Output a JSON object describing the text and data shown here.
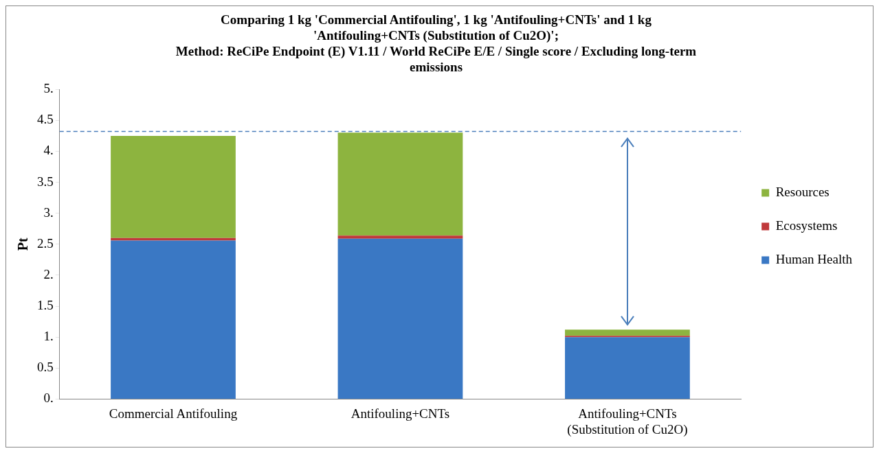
{
  "chart_data": {
    "type": "bar",
    "stacked": true,
    "title": "Comparing 1 kg 'Commercial Antifouling', 1 kg 'Antifouling+CNTs' and 1 kg\n'Antifouling+CNTs (Substitution of Cu2O)';\nMethod: ReCiPe Endpoint (E) V1.11 / World ReCiPe E/E / Single score / Excluding long-term\nemissions",
    "ylabel": "Pt",
    "categories": [
      "Commercial Antifouling",
      "Antifouling+CNTs",
      "Antifouling+CNTs (Substitution of Cu2O)"
    ],
    "series": [
      {
        "name": "Human Health",
        "color": "#3a78c4",
        "values": [
          2.56,
          2.59,
          1.0
        ]
      },
      {
        "name": "Ecosystems",
        "color": "#c0393b",
        "values": [
          0.04,
          0.05,
          0.02
        ]
      },
      {
        "name": "Resources",
        "color": "#8db43f",
        "values": [
          1.65,
          1.66,
          0.1
        ]
      }
    ],
    "ylim": [
      0,
      5
    ],
    "yticks": [
      {
        "value": 0,
        "label": "0."
      },
      {
        "value": 0.5,
        "label": "0.5"
      },
      {
        "value": 1,
        "label": "1."
      },
      {
        "value": 1.5,
        "label": "1.5"
      },
      {
        "value": 2,
        "label": "2."
      },
      {
        "value": 2.5,
        "label": "2.5"
      },
      {
        "value": 3,
        "label": "3."
      },
      {
        "value": 3.5,
        "label": "3.5"
      },
      {
        "value": 4,
        "label": "4."
      },
      {
        "value": 4.5,
        "label": "4.5"
      },
      {
        "value": 5,
        "label": "5."
      }
    ],
    "ref_lines": [
      {
        "axis": "y",
        "value": 4.32,
        "color": "#4a7ebb",
        "line_style": "dashed"
      }
    ],
    "grid": false,
    "legend": "right"
  }
}
